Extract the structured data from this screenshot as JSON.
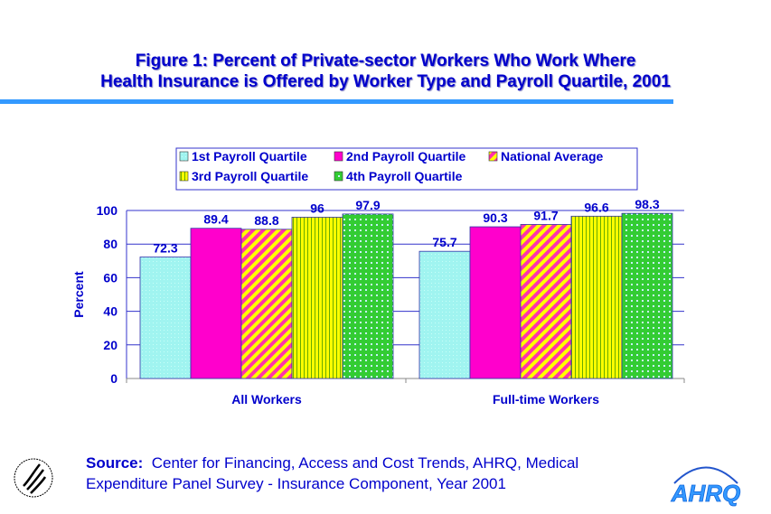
{
  "title": {
    "line1": "Figure 1: Percent of Private-sector Workers Who Work Where",
    "line2": "Health Insurance is Offered by Worker Type and Payroll Quartile, 2001"
  },
  "chart_data": {
    "type": "bar",
    "categories": [
      "All Workers",
      "Full-time Workers"
    ],
    "series": [
      {
        "name": "1st Payroll Quartile",
        "values": [
          72.3,
          75.7
        ],
        "labels": [
          "72.3",
          "75.7"
        ],
        "color": "#a0f4f0"
      },
      {
        "name": "2nd Payroll Quartile",
        "values": [
          89.4,
          90.3
        ],
        "labels": [
          "89.4",
          "90.3"
        ],
        "color": "#ff00cc"
      },
      {
        "name": "National Average",
        "values": [
          88.8,
          91.7
        ],
        "labels": [
          "88.8",
          "91.7"
        ],
        "color": "#ffff00"
      },
      {
        "name": "3rd Payroll Quartile",
        "values": [
          96,
          96.6
        ],
        "labels": [
          "96",
          "96.6"
        ],
        "color": "#ffff00"
      },
      {
        "name": "4th Payroll Quartile",
        "values": [
          97.9,
          98.3
        ],
        "labels": [
          "97.9",
          "98.3"
        ],
        "color": "#33cc33"
      }
    ],
    "ylabel": "Percent",
    "xlabel": "",
    "ylim": [
      0,
      100
    ],
    "yticks": [
      "0",
      "20",
      "40",
      "60",
      "80",
      "100"
    ],
    "grid": true,
    "legend": "top"
  },
  "source": {
    "label": "Source:",
    "line1": "Center for Financing, Access and Cost Trends, AHRQ, Medical",
    "line2": "Expenditure Panel Survey - Insurance Component, Year 2001"
  },
  "logos": {
    "hhs": "HHS seal",
    "ahrq": "AHRQ"
  }
}
